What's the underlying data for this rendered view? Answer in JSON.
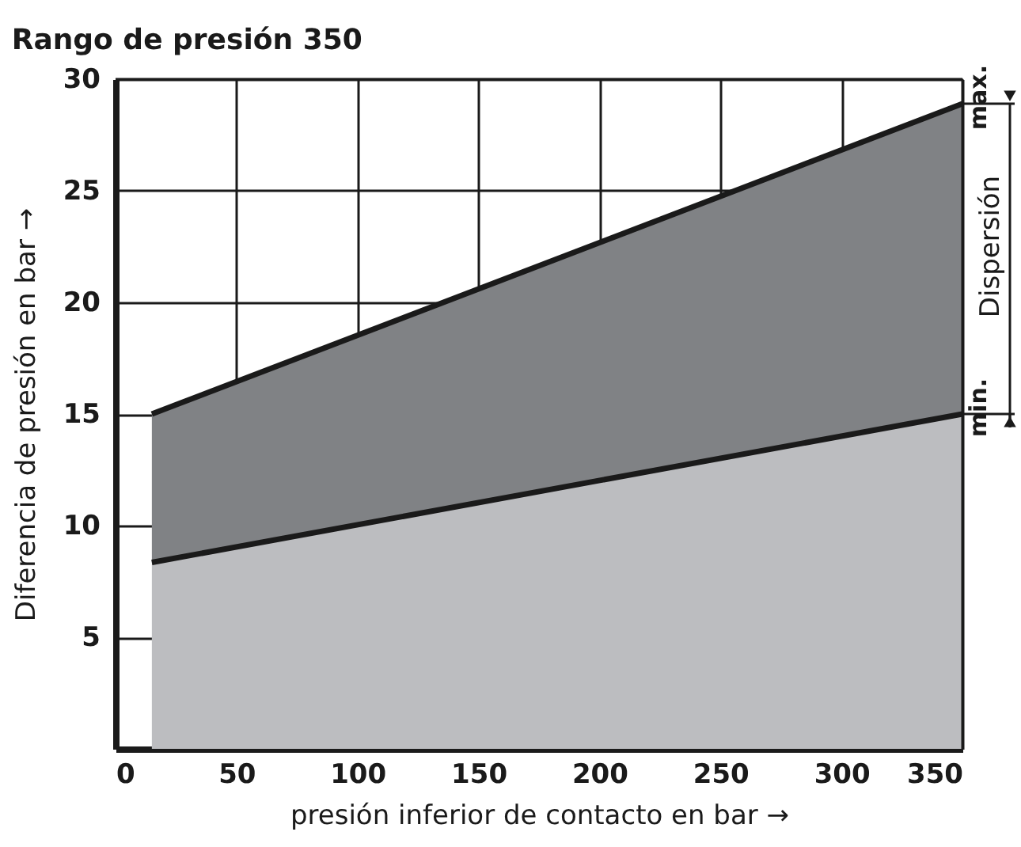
{
  "chart_data": {
    "type": "area",
    "title": "Rango de presión 350",
    "xlabel": "presión inferior de contacto en bar →",
    "ylabel": "Diferencia de presión en bar →",
    "x": [
      15,
      350
    ],
    "stacked": true,
    "series": [
      {
        "color": "#bcbdc0",
        "values": [
          8.35,
          15
        ]
      },
      {
        "color": "#808285",
        "values": [
          6.65,
          13.9
        ]
      }
    ],
    "xlim": [
      0,
      350
    ],
    "xticks": [
      0,
      50,
      100,
      150,
      200,
      250,
      300,
      350
    ],
    "ylim": [
      0,
      30
    ],
    "yticks": [
      5,
      10,
      15,
      20,
      25,
      30
    ],
    "grid": true,
    "annotations": [
      {
        "text": "max.",
        "x": 350,
        "y": 28.9
      },
      {
        "text": "min.",
        "x": 350,
        "y": 15
      },
      "Dispersión"
    ]
  }
}
